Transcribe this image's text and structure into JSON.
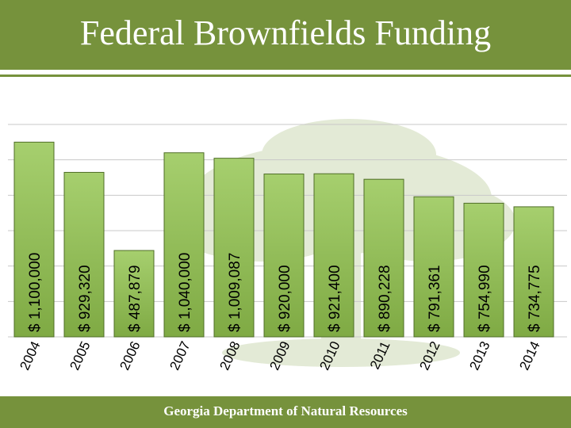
{
  "title": "Federal Brownfields Funding",
  "footer": "Georgia Department of Natural Resources",
  "colors": {
    "header": "#76923c",
    "bar_top": "#a6cf6e",
    "bar_bottom": "#7faa44",
    "bar_stroke": "#4f6e27",
    "tree": "#e3ead6",
    "grid": "#c8c8c8"
  },
  "chart_data": {
    "type": "bar",
    "categories": [
      "2004",
      "2005",
      "2006",
      "2007",
      "2008",
      "2009",
      "2010",
      "2011",
      "2012",
      "2013",
      "2014"
    ],
    "values": [
      1100000,
      929320,
      487879,
      1040000,
      1009087,
      920000,
      921400,
      890228,
      791361,
      754990,
      734775
    ],
    "value_labels": [
      "$ 1,100,000",
      "$ 929,320",
      "$ 487,879",
      "$ 1,040,000",
      "$ 1,009,087",
      "$ 920,000",
      "$ 921,400",
      "$ 890,228",
      "$ 791,361",
      "$ 754,990",
      "$ 734,775"
    ],
    "title": "Federal Brownfields Funding",
    "xlabel": "",
    "ylabel": "",
    "ylim": [
      0,
      1200000
    ],
    "grid": true,
    "legend": "none"
  }
}
